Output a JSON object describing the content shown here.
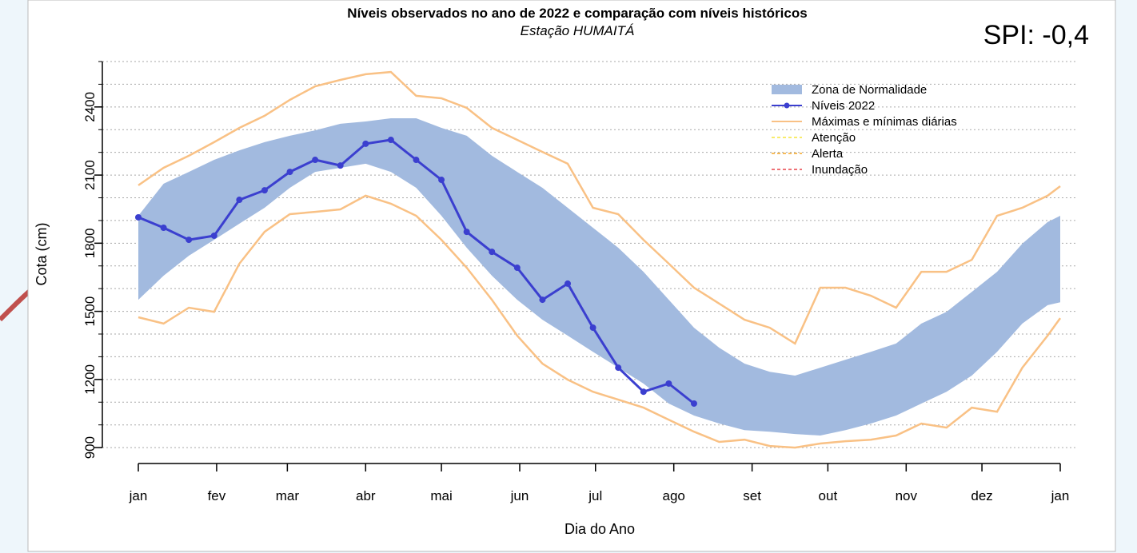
{
  "chart_data": {
    "type": "line",
    "title": "Níveis observados no ano de 2022 e comparação com níveis históricos",
    "subtitle": "Estação HUMAITÁ",
    "annotation": "SPI: -0,4",
    "x_label": "Dia do Ano",
    "y_label": "Cota (cm)",
    "x": [
      1,
      11,
      21,
      31,
      41,
      51,
      61,
      71,
      81,
      91,
      101,
      111,
      121,
      131,
      141,
      151,
      161,
      171,
      181,
      191,
      201,
      211,
      221,
      231,
      241,
      251,
      261,
      271,
      281,
      291,
      301,
      311,
      321,
      331,
      341,
      351,
      361,
      366
    ],
    "band": {
      "name": "Zona de Normalidade",
      "color": "#a2badf",
      "upper": [
        1921,
        2062,
        2114,
        2167,
        2209,
        2245,
        2273,
        2297,
        2326,
        2336,
        2350,
        2350,
        2308,
        2273,
        2185,
        2114,
        2044,
        1956,
        1868,
        1780,
        1674,
        1551,
        1428,
        1340,
        1270,
        1234,
        1217,
        1252,
        1287,
        1322,
        1358,
        1446,
        1498,
        1586,
        1674,
        1798,
        1893,
        1921
      ],
      "lower": [
        1551,
        1657,
        1745,
        1815,
        1886,
        1956,
        2044,
        2114,
        2132,
        2150,
        2114,
        2044,
        1921,
        1780,
        1657,
        1551,
        1463,
        1393,
        1322,
        1252,
        1182,
        1094,
        1041,
        1006,
        977,
        970,
        960,
        953,
        977,
        1006,
        1041,
        1094,
        1146,
        1217,
        1322,
        1446,
        1527,
        1540
      ]
    },
    "envelope": {
      "name": "Máximas e mínimas diárias",
      "color": "#f9c185",
      "upper": [
        2055,
        2132,
        2185,
        2245,
        2308,
        2361,
        2431,
        2491,
        2519,
        2544,
        2554,
        2449,
        2438,
        2396,
        2308,
        2255,
        2202,
        2150,
        1956,
        1928,
        1815,
        1710,
        1604,
        1534,
        1463,
        1428,
        1358,
        1604,
        1604,
        1569,
        1516,
        1674,
        1674,
        1727,
        1921,
        1956,
        2009,
        2051
      ],
      "lower": [
        1474,
        1446,
        1516,
        1498,
        1710,
        1850,
        1928,
        1938,
        1949,
        2009,
        1974,
        1921,
        1815,
        1692,
        1551,
        1393,
        1270,
        1199,
        1146,
        1111,
        1076,
        1023,
        970,
        925,
        935,
        907,
        900,
        918,
        928,
        935,
        953,
        1006,
        988,
        1076,
        1058,
        1252,
        1393,
        1470
      ]
    },
    "series": [
      {
        "name": "Níveis 2022",
        "color": "#3b3fcf",
        "values": [
          1914,
          1868,
          1815,
          1833,
          1991,
          2033,
          2114,
          2167,
          2142,
          2238,
          2255,
          2167,
          2079,
          1850,
          1762,
          1692,
          1551,
          1622,
          1428,
          1252,
          1146,
          1182,
          1094,
          null,
          null,
          null,
          null,
          null,
          null,
          null,
          null,
          null,
          null,
          null,
          null,
          null,
          null,
          null
        ]
      }
    ],
    "thresholds": [
      {
        "name": "Atenção",
        "color": "#f5e63b"
      },
      {
        "name": "Alerta",
        "color": "#f5a623"
      },
      {
        "name": "Inundação",
        "color": "#e8434a"
      }
    ],
    "xlim": [
      1,
      366
    ],
    "xticks": [
      {
        "value": 1,
        "label": "jan"
      },
      {
        "value": 32,
        "label": "fev"
      },
      {
        "value": 60,
        "label": "mar"
      },
      {
        "value": 91,
        "label": "abr"
      },
      {
        "value": 121,
        "label": "mai"
      },
      {
        "value": 152,
        "label": "jun"
      },
      {
        "value": 182,
        "label": "jul"
      },
      {
        "value": 213,
        "label": "ago"
      },
      {
        "value": 244,
        "label": "set"
      },
      {
        "value": 274,
        "label": "out"
      },
      {
        "value": 305,
        "label": "nov"
      },
      {
        "value": 335,
        "label": "dez"
      },
      {
        "value": 366,
        "label": "jan"
      }
    ],
    "ylim": [
      830,
      2607
    ],
    "yticks": [
      900,
      1200,
      1500,
      1800,
      2100,
      2400
    ],
    "minor_yticks": [
      900,
      1000,
      1100,
      1200,
      1300,
      1400,
      1500,
      1600,
      1700,
      1800,
      1900,
      2000,
      2100,
      2200,
      2300,
      2400,
      2500,
      2600
    ],
    "grid": true
  }
}
